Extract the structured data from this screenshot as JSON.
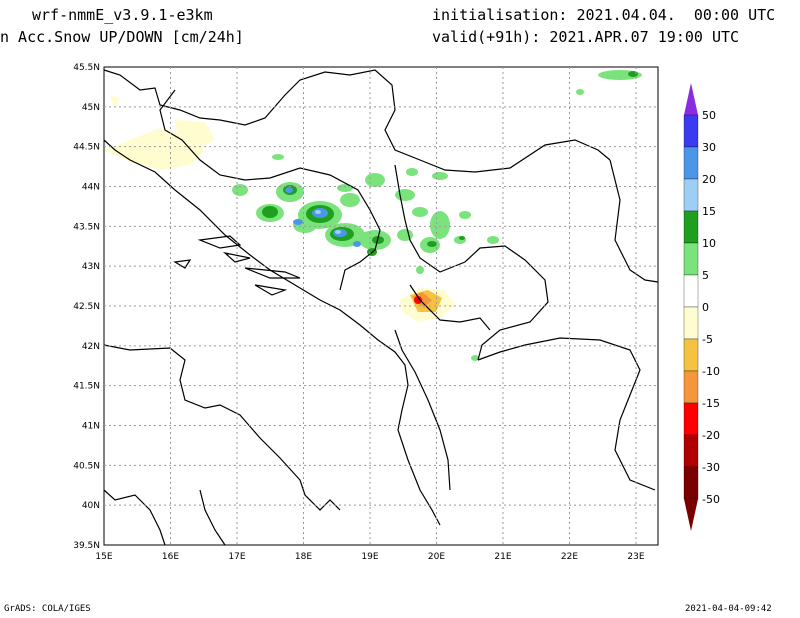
{
  "header": {
    "model": "wrf-nmmE_v3.9.1-e3km",
    "field": "n Acc.Snow UP/DOWN [cm/24h]",
    "init": "initialisation: 2021.04.04.  00:00 UTC",
    "valid": "valid(+91h): 2021.APR.07 19:00 UTC"
  },
  "map": {
    "lat_labels": [
      "45.5N",
      "45N",
      "44.5N",
      "44N",
      "43.5N",
      "43N",
      "42.5N",
      "42N",
      "41.5N",
      "41N",
      "40.5N",
      "40N",
      "39.5N"
    ],
    "lon_labels": [
      "15E",
      "16E",
      "17E",
      "18E",
      "19E",
      "20E",
      "21E",
      "22E",
      "23E"
    ]
  },
  "colorbar": {
    "labels": [
      "50",
      "30",
      "20",
      "15",
      "10",
      "5",
      "0",
      "-5",
      "-10",
      "-15",
      "-20",
      "-30",
      "-50"
    ],
    "colors": [
      "#8a2be2",
      "#3a3af0",
      "#4a96e8",
      "#9dcff5",
      "#1e9f1e",
      "#7be37b",
      "#ffffff",
      "#fffdd0",
      "#f5c242",
      "#f5963c",
      "#ff0000",
      "#b00000",
      "#7a0000"
    ]
  },
  "footer": {
    "left": "GrADS: COLA/IGES",
    "right": "2021-04-04-09:42"
  }
}
